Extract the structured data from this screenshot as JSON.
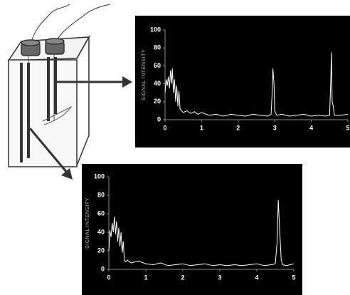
{
  "chart_data": [
    {
      "type": "line",
      "ylabel": "SIGNAL INTENSITY",
      "color": "#ffffff",
      "x": [
        0,
        0.03,
        0.06,
        0.09,
        0.12,
        0.15,
        0.18,
        0.2,
        0.23,
        0.26,
        0.29,
        0.32,
        0.35,
        0.38,
        0.41,
        0.45,
        0.5,
        0.6,
        0.7,
        0.8,
        0.9,
        1.0,
        1.2,
        1.4,
        1.6,
        1.8,
        2.0,
        2.2,
        2.4,
        2.6,
        2.8,
        2.9,
        2.93,
        2.95,
        2.98,
        3.0,
        3.05,
        3.2,
        3.4,
        3.6,
        3.8,
        4.0,
        4.2,
        4.4,
        4.5,
        4.53,
        4.55,
        4.57,
        4.6,
        4.63,
        4.8,
        5.0
      ],
      "values": [
        30,
        45,
        38,
        48,
        35,
        55,
        40,
        57,
        30,
        45,
        20,
        38,
        15,
        32,
        12,
        10,
        8,
        10,
        7,
        9,
        6,
        8,
        5,
        6,
        4,
        6,
        5,
        4,
        6,
        5,
        4,
        6,
        30,
        57,
        40,
        10,
        5,
        6,
        4,
        5,
        6,
        4,
        5,
        4,
        5,
        40,
        75,
        20,
        15,
        5,
        5,
        6
      ],
      "xlim": [
        0,
        5
      ],
      "ylim": [
        0,
        100
      ],
      "xticks": [
        0,
        1,
        2,
        3,
        4,
        5
      ],
      "yticks": [
        0,
        20,
        40,
        60,
        80,
        100
      ]
    },
    {
      "type": "line",
      "ylabel": "SIGNAL INTENSITY",
      "color": "#ffffff",
      "x": [
        0,
        0.03,
        0.06,
        0.09,
        0.12,
        0.15,
        0.18,
        0.21,
        0.24,
        0.27,
        0.3,
        0.33,
        0.36,
        0.39,
        0.42,
        0.46,
        0.5,
        0.6,
        0.8,
        1.0,
        1.2,
        1.4,
        1.6,
        1.8,
        2.0,
        2.2,
        2.4,
        2.6,
        2.8,
        3.0,
        3.2,
        3.4,
        3.6,
        3.8,
        4.0,
        4.2,
        4.4,
        4.5,
        4.55,
        4.58,
        4.62,
        4.66,
        4.7,
        4.8,
        5.0
      ],
      "values": [
        20,
        42,
        35,
        50,
        40,
        57,
        38,
        52,
        30,
        45,
        25,
        40,
        18,
        30,
        10,
        8,
        10,
        7,
        9,
        6,
        5,
        7,
        4,
        5,
        6,
        4,
        5,
        6,
        4,
        5,
        4,
        5,
        4,
        5,
        6,
        4,
        5,
        6,
        30,
        75,
        40,
        10,
        5,
        4,
        6
      ],
      "xlim": [
        0,
        5
      ],
      "ylim": [
        0,
        100
      ],
      "xticks": [
        0,
        1,
        2,
        3,
        4,
        5
      ],
      "yticks": [
        0,
        20,
        40,
        60,
        80,
        100
      ]
    }
  ]
}
